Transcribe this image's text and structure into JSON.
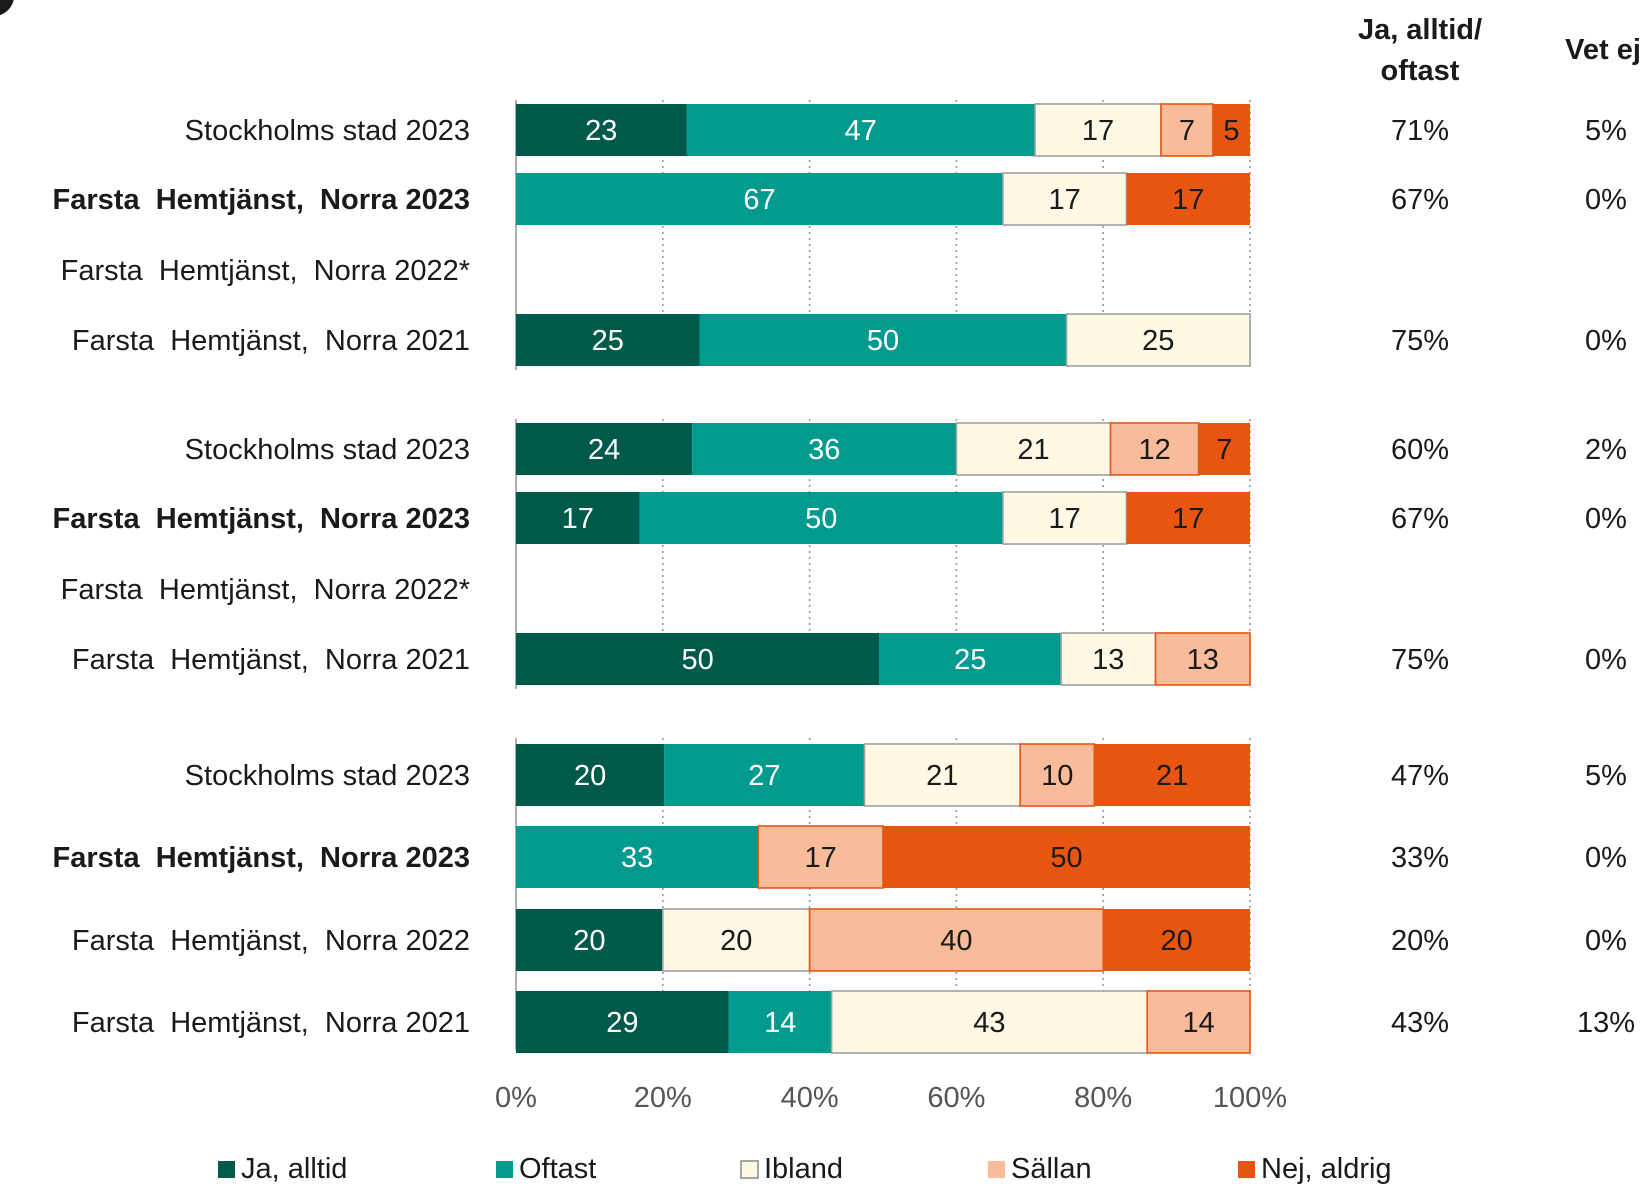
{
  "header": {
    "ja_oftast_line1": "Ja, alltid/",
    "ja_oftast_line2": "oftast",
    "vet_ej": "Vet ej"
  },
  "colors": {
    "ja_alltid": "#005a4b",
    "oftast": "#009a8e",
    "ibland": "#fff8e5",
    "sallan": "#f9bc9a",
    "nej_aldrig": "#e85511",
    "edge": "#9a9a9a",
    "text": "#1a1a1a"
  },
  "chart_data": {
    "type": "bar",
    "orientation": "horizontal-stacked-100",
    "xlim": [
      0,
      100
    ],
    "x_ticks": [
      "0%",
      "20%",
      "40%",
      "60%",
      "80%",
      "100%"
    ],
    "grid": "vertical dotted",
    "legend_position": "bottom",
    "series": [
      {
        "key": "ja_alltid",
        "name": "Ja, alltid"
      },
      {
        "key": "oftast",
        "name": "Oftast"
      },
      {
        "key": "ibland",
        "name": "Ibland"
      },
      {
        "key": "sallan",
        "name": "Sällan"
      },
      {
        "key": "nej_aldrig",
        "name": "Nej, aldrig"
      }
    ],
    "groups": [
      {
        "rows": [
          {
            "label": "Stockholms stad 2023",
            "bold": false,
            "values": [
              23,
              47,
              17,
              7,
              5
            ],
            "ja_oftast": "71%",
            "vet_ej": "5%"
          },
          {
            "label": "Farsta  Hemtjänst,  Norra 2023",
            "bold": true,
            "values": [
              0,
              67,
              17,
              0,
              17
            ],
            "ja_oftast": "67%",
            "vet_ej": "0%"
          },
          {
            "label": "Farsta  Hemtjänst,  Norra 2022*",
            "bold": false,
            "values": [],
            "ja_oftast": "",
            "vet_ej": ""
          },
          {
            "label": "Farsta  Hemtjänst,  Norra 2021",
            "bold": false,
            "values": [
              25,
              50,
              25,
              0,
              0
            ],
            "ja_oftast": "75%",
            "vet_ej": "0%"
          }
        ]
      },
      {
        "rows": [
          {
            "label": "Stockholms stad 2023",
            "bold": false,
            "values": [
              24,
              36,
              21,
              12,
              7
            ],
            "ja_oftast": "60%",
            "vet_ej": "2%"
          },
          {
            "label": "Farsta  Hemtjänst,  Norra 2023",
            "bold": true,
            "values": [
              17,
              50,
              17,
              0,
              17
            ],
            "ja_oftast": "67%",
            "vet_ej": "0%"
          },
          {
            "label": "Farsta  Hemtjänst,  Norra 2022*",
            "bold": false,
            "values": [],
            "ja_oftast": "",
            "vet_ej": ""
          },
          {
            "label": "Farsta  Hemtjänst,  Norra 2021",
            "bold": false,
            "values": [
              50,
              25,
              13,
              13,
              0
            ],
            "ja_oftast": "75%",
            "vet_ej": "0%"
          }
        ]
      },
      {
        "rows": [
          {
            "label": "Stockholms stad 2023",
            "bold": false,
            "values": [
              20,
              27,
              21,
              10,
              21
            ],
            "ja_oftast": "47%",
            "vet_ej": "5%"
          },
          {
            "label": "Farsta  Hemtjänst,  Norra 2023",
            "bold": true,
            "values": [
              0,
              33,
              0,
              17,
              50
            ],
            "ja_oftast": "33%",
            "vet_ej": "0%"
          },
          {
            "label": "Farsta  Hemtjänst,  Norra 2022",
            "bold": false,
            "values": [
              20,
              0,
              20,
              40,
              20
            ],
            "ja_oftast": "20%",
            "vet_ej": "0%"
          },
          {
            "label": "Farsta  Hemtjänst,  Norra 2021",
            "bold": false,
            "values": [
              29,
              14,
              43,
              14,
              0
            ],
            "ja_oftast": "43%",
            "vet_ej": "13%"
          }
        ]
      }
    ]
  }
}
